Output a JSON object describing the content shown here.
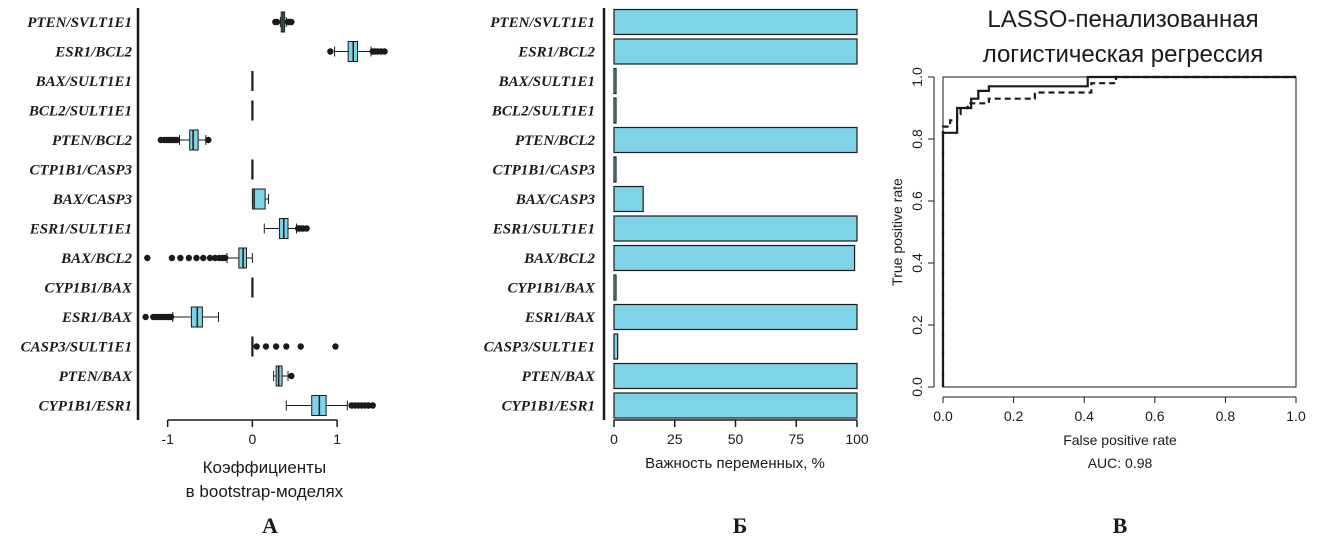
{
  "chart_data": [
    {
      "type": "boxplot",
      "panel_label": "А",
      "xlabel": [
        "Коэффициенты",
        "в bootstrap-моделях"
      ],
      "xlim": [
        -1.35,
        1.6
      ],
      "xticks": [
        -1,
        0,
        1
      ],
      "xtick_labels": [
        "-1",
        "0",
        "1"
      ],
      "box_color": "#7fd3e6",
      "categories": [
        "PTEN/SVLT1E1",
        "ESR1/BCL2",
        "BAX/SULT1E1",
        "BCL2/SULT1E1",
        "PTEN/BCL2",
        "CTP1B1/CASP3",
        "BAX/CASP3",
        "ESR1/SULT1E1",
        "BAX/BCL2",
        "CYP1B1/BAX",
        "ESR1/BAX",
        "CASP3/SULT1E1",
        "PTEN/BAX",
        "CYP1B1/ESR1"
      ],
      "boxes": [
        {
          "whisker_lo": 0.33,
          "q1": 0.34,
          "median": 0.36,
          "q3": 0.38,
          "whisker_hi": 0.4,
          "outliers": [
            0.27,
            0.29,
            0.42,
            0.44,
            0.46
          ]
        },
        {
          "whisker_lo": 0.97,
          "q1": 1.13,
          "median": 1.19,
          "q3": 1.24,
          "whisker_hi": 1.4,
          "outliers": [
            0.92,
            1.42,
            1.45,
            1.48,
            1.52,
            1.56
          ]
        },
        {
          "whisker_lo": 0,
          "q1": 0,
          "median": 0,
          "q3": 0,
          "whisker_hi": 0,
          "outliers": []
        },
        {
          "whisker_lo": 0,
          "q1": 0,
          "median": 0,
          "q3": 0,
          "whisker_hi": 0,
          "outliers": []
        },
        {
          "whisker_lo": -0.86,
          "q1": -0.74,
          "median": -0.7,
          "q3": -0.64,
          "whisker_hi": -0.55,
          "outliers": [
            -1.08,
            -1.04,
            -1.01,
            -0.98,
            -0.95,
            -0.92,
            -0.89,
            -0.52
          ]
        },
        {
          "whisker_lo": 0,
          "q1": 0,
          "median": 0,
          "q3": 0,
          "whisker_hi": 0,
          "outliers": []
        },
        {
          "whisker_lo": 0,
          "q1": 0,
          "median": 0.02,
          "q3": 0.15,
          "whisker_hi": 0.19,
          "outliers": []
        },
        {
          "whisker_lo": 0.14,
          "q1": 0.32,
          "median": 0.37,
          "q3": 0.42,
          "whisker_hi": 0.52,
          "outliers": [
            0.54,
            0.57,
            0.6,
            0.64
          ]
        },
        {
          "whisker_lo": -0.3,
          "q1": -0.16,
          "median": -0.11,
          "q3": -0.07,
          "whisker_hi": 0,
          "outliers": [
            -1.24,
            -0.95,
            -0.85,
            -0.75,
            -0.66,
            -0.58,
            -0.5,
            -0.44,
            -0.39,
            -0.35,
            -0.32
          ]
        },
        {
          "whisker_lo": 0,
          "q1": 0,
          "median": 0,
          "q3": 0,
          "whisker_hi": 0,
          "outliers": []
        },
        {
          "whisker_lo": -0.94,
          "q1": -0.72,
          "median": -0.65,
          "q3": -0.59,
          "whisker_hi": -0.4,
          "outliers": [
            -1.26,
            -1.17,
            -1.14,
            -1.11,
            -1.08,
            -1.05,
            -1.02,
            -0.99,
            -0.96
          ]
        },
        {
          "whisker_lo": 0,
          "q1": 0,
          "median": 0,
          "q3": 0,
          "whisker_hi": 0,
          "outliers": [
            0.05,
            0.16,
            0.28,
            0.4,
            0.57,
            0.98
          ]
        },
        {
          "whisker_lo": 0.25,
          "q1": 0.28,
          "median": 0.31,
          "q3": 0.35,
          "whisker_hi": 0.42,
          "outliers": [
            0.46
          ]
        },
        {
          "whisker_lo": 0.4,
          "q1": 0.7,
          "median": 0.79,
          "q3": 0.87,
          "whisker_hi": 1.12,
          "outliers": [
            1.17,
            1.21,
            1.25,
            1.29,
            1.33,
            1.37,
            1.42
          ]
        }
      ]
    },
    {
      "type": "bar",
      "orientation": "horizontal",
      "panel_label": "Б",
      "xlabel": "Важность переменных, %",
      "xlim": [
        0,
        100
      ],
      "xticks": [
        0,
        25,
        50,
        75,
        100
      ],
      "bar_color": "#7fd3e6",
      "categories": [
        "PTEN/SVLT1E1",
        "ESR1/BCL2",
        "BAX/SULT1E1",
        "BCL2/SULT1E1",
        "PTEN/BCL2",
        "CTP1B1/CASP3",
        "BAX/CASP3",
        "ESR1/SULT1E1",
        "BAX/BCL2",
        "CYP1B1/BAX",
        "ESR1/BAX",
        "CASP3/SULT1E1",
        "PTEN/BAX",
        "CYP1B1/ESR1"
      ],
      "values": [
        100,
        100,
        0.3,
        0.3,
        100,
        0.3,
        12,
        100,
        99,
        0.3,
        100,
        1.5,
        100,
        100
      ]
    },
    {
      "type": "line",
      "panel_label": "В",
      "title": [
        "LASSO-пенализованная",
        "логистическая регрессия"
      ],
      "xlabel": "False positive rate",
      "ylabel": "True positive rate",
      "annotation": "AUC: 0.98",
      "xlim": [
        0,
        1
      ],
      "ylim": [
        0,
        1
      ],
      "xticks": [
        0,
        0.2,
        0.4,
        0.6,
        0.8,
        1
      ],
      "xtick_labels": [
        "0.0",
        "0.2",
        "0.4",
        "0.6",
        "0.8",
        "1.0"
      ],
      "yticks": [
        0,
        0.2,
        0.4,
        0.6,
        0.8,
        1
      ],
      "ytick_labels": [
        "0.0",
        "0.2",
        "0.4",
        "0.6",
        "0.8",
        "1.0"
      ],
      "series": [
        {
          "style": "solid",
          "x": [
            0,
            0,
            0.04,
            0.04,
            0.08,
            0.08,
            0.1,
            0.1,
            0.13,
            0.13,
            0.41,
            0.41,
            1.0
          ],
          "y": [
            0,
            0.82,
            0.82,
            0.9,
            0.9,
            0.93,
            0.93,
            0.955,
            0.955,
            0.97,
            0.97,
            1.0,
            1.0
          ]
        },
        {
          "style": "dashed",
          "x": [
            0,
            0,
            0.02,
            0.02,
            0.04,
            0.04,
            0.05,
            0.05,
            0.07,
            0.07,
            0.13,
            0.13,
            0.26,
            0.26,
            0.42,
            0.42,
            0.49,
            0.49,
            1.0
          ],
          "y": [
            0,
            0.84,
            0.84,
            0.86,
            0.86,
            0.88,
            0.88,
            0.9,
            0.9,
            0.915,
            0.915,
            0.93,
            0.93,
            0.95,
            0.95,
            0.98,
            0.98,
            1.0,
            1.0
          ]
        }
      ]
    }
  ]
}
